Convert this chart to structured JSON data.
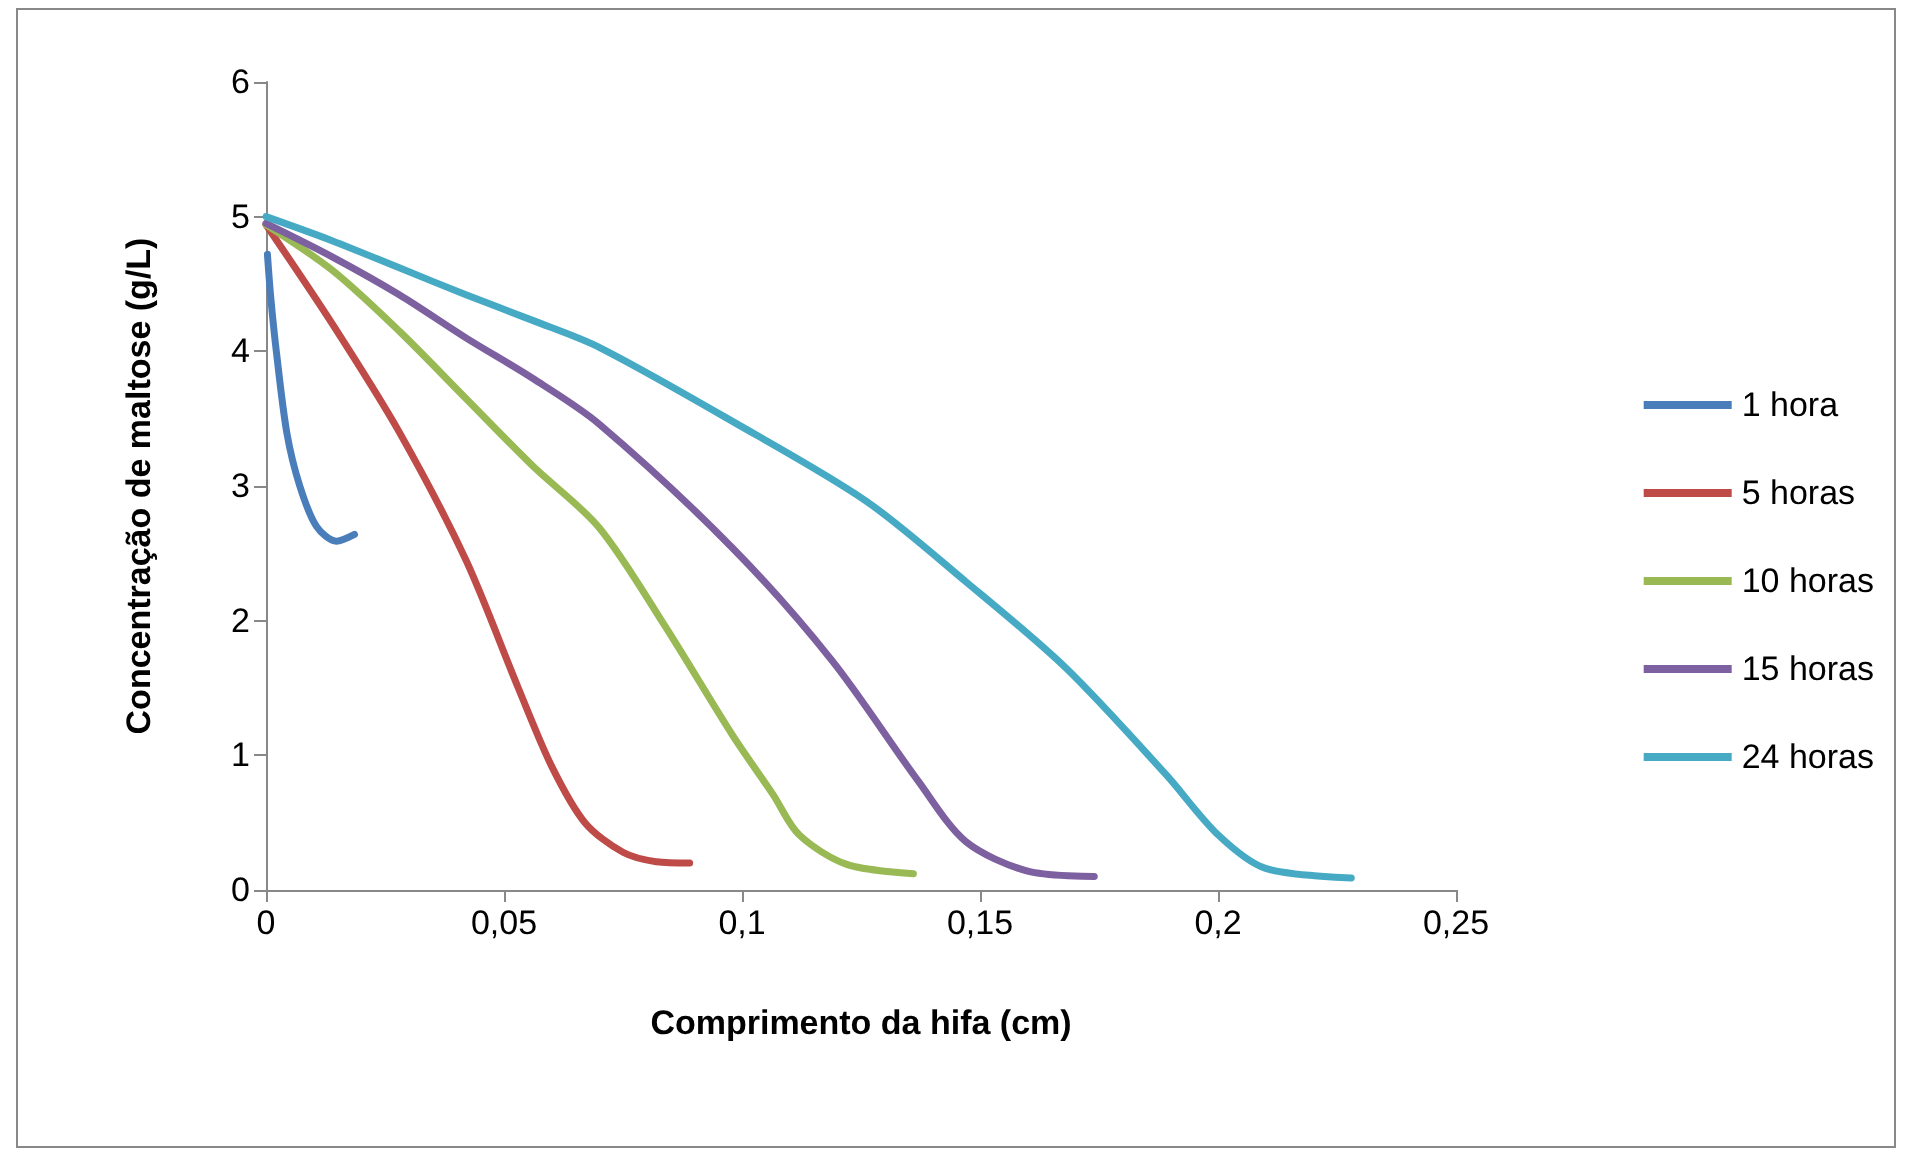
{
  "chart_data": {
    "type": "line",
    "xlabel": "Comprimento da hifa (cm)",
    "ylabel": "Concentração de maltose (g/L)",
    "xlim": [
      0,
      0.25
    ],
    "xticks": [
      {
        "value": 0,
        "label": "0"
      },
      {
        "value": 0.05,
        "label": "0,05"
      },
      {
        "value": 0.1,
        "label": "0,1"
      },
      {
        "value": 0.15,
        "label": "0,15"
      },
      {
        "value": 0.2,
        "label": "0,2"
      },
      {
        "value": 0.25,
        "label": "0,25"
      }
    ],
    "ylim": [
      0,
      6
    ],
    "yticks": [
      0,
      1,
      2,
      3,
      4,
      5,
      6
    ],
    "grid": false,
    "legend": "right",
    "marker": "none",
    "line_style": "solid",
    "series": [
      {
        "name": "1 hora",
        "color": "#4a7ebb",
        "x": [
          0.0003,
          0.001,
          0.0022,
          0.0044,
          0.0071,
          0.0106,
          0.0148,
          0.0186
        ],
        "values": [
          4.72,
          4.4,
          3.99,
          3.39,
          3.0,
          2.7,
          2.59,
          2.64
        ]
      },
      {
        "name": "5 horas",
        "color": "#be4b48",
        "x": [
          0,
          0.014,
          0.028,
          0.042,
          0.053,
          0.06,
          0.067,
          0.075,
          0.082,
          0.089
        ],
        "values": [
          4.94,
          4.2,
          3.4,
          2.45,
          1.5,
          0.92,
          0.5,
          0.28,
          0.21,
          0.2
        ]
      },
      {
        "name": "10 horas",
        "color": "#98b954",
        "x": [
          0,
          0.014,
          0.028,
          0.042,
          0.056,
          0.07,
          0.084,
          0.098,
          0.1065,
          0.112,
          0.122,
          0.136
        ],
        "values": [
          4.94,
          4.6,
          4.15,
          3.65,
          3.15,
          2.69,
          1.95,
          1.15,
          0.71,
          0.41,
          0.19,
          0.12
        ]
      },
      {
        "name": "15 horas",
        "color": "#7d60a0",
        "x": [
          0,
          0.014,
          0.028,
          0.042,
          0.056,
          0.07,
          0.098,
          0.119,
          0.137,
          0.147,
          0.16,
          0.174
        ],
        "values": [
          4.95,
          4.7,
          4.42,
          4.1,
          3.8,
          3.46,
          2.54,
          1.7,
          0.81,
          0.36,
          0.14,
          0.1
        ]
      },
      {
        "name": "24 horas",
        "color": "#46aac5",
        "x": [
          0,
          0.014,
          0.028,
          0.042,
          0.056,
          0.07,
          0.098,
          0.126,
          0.147,
          0.168,
          0.189,
          0.2,
          0.21,
          0.228
        ],
        "values": [
          5.0,
          4.82,
          4.62,
          4.42,
          4.23,
          4.03,
          3.48,
          2.89,
          2.29,
          1.65,
          0.86,
          0.41,
          0.16,
          0.09
        ]
      }
    ]
  }
}
